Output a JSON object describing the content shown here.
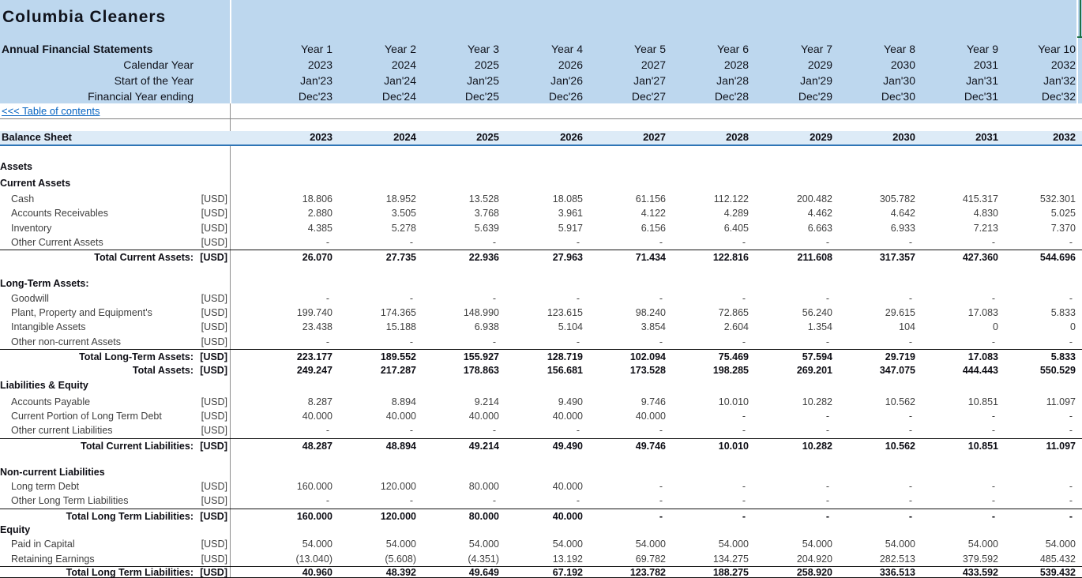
{
  "colors": {
    "header_band": "#BDD7EE",
    "subheader_band": "#DDEBF7",
    "accent_blue": "#2E75B6",
    "link_blue": "#0563C1",
    "selection_green": "#1E7145"
  },
  "header": {
    "title": "Columbia Cleaners",
    "statements_label": "Annual Financial Statements",
    "year_labels": [
      "Year 1",
      "Year 2",
      "Year 3",
      "Year 4",
      "Year 5",
      "Year 6",
      "Year 7",
      "Year 8",
      "Year 9",
      "Year 10"
    ],
    "rows": [
      {
        "label": "Calendar Year",
        "values": [
          "2023",
          "2024",
          "2025",
          "2026",
          "2027",
          "2028",
          "2029",
          "2030",
          "2031",
          "2032"
        ]
      },
      {
        "label": "Start of the Year",
        "values": [
          "Jan'23",
          "Jan'24",
          "Jan'25",
          "Jan'26",
          "Jan'27",
          "Jan'28",
          "Jan'29",
          "Jan'30",
          "Jan'31",
          "Jan'32"
        ]
      },
      {
        "label": "Financial Year ending",
        "values": [
          "Dec'23",
          "Dec'24",
          "Dec'25",
          "Dec'26",
          "Dec'27",
          "Dec'28",
          "Dec'29",
          "Dec'30",
          "Dec'31",
          "Dec'32"
        ]
      }
    ]
  },
  "toc_link": "<<< Table of contents",
  "balance_sheet": {
    "label": "Balance Sheet",
    "years": [
      "2023",
      "2024",
      "2025",
      "2026",
      "2027",
      "2028",
      "2029",
      "2030",
      "2031",
      "2032"
    ]
  },
  "table": {
    "unit": "[USD]",
    "rows": [
      {
        "type": "section",
        "label": "Assets"
      },
      {
        "type": "section",
        "label": "Current Assets"
      },
      {
        "type": "item",
        "label": "Cash",
        "values": [
          "18.806",
          "18.952",
          "13.528",
          "18.085",
          "61.156",
          "112.122",
          "200.482",
          "305.782",
          "415.317",
          "532.301"
        ]
      },
      {
        "type": "item",
        "label": "Accounts Receivables",
        "values": [
          "2.880",
          "3.505",
          "3.768",
          "3.961",
          "4.122",
          "4.289",
          "4.462",
          "4.642",
          "4.830",
          "5.025"
        ]
      },
      {
        "type": "item",
        "label": "Inventory",
        "values": [
          "4.385",
          "5.278",
          "5.639",
          "5.917",
          "6.156",
          "6.405",
          "6.663",
          "6.933",
          "7.213",
          "7.370"
        ]
      },
      {
        "type": "item",
        "label": "Other Current Assets",
        "values": [
          "-",
          "-",
          "-",
          "-",
          "-",
          "-",
          "-",
          "-",
          "-",
          "-"
        ]
      },
      {
        "type": "total",
        "label": "Total Current Assets:",
        "values": [
          "26.070",
          "27.735",
          "22.936",
          "27.963",
          "71.434",
          "122.816",
          "211.608",
          "317.357",
          "427.360",
          "544.696"
        ]
      },
      {
        "type": "blank"
      },
      {
        "type": "section",
        "label": "Long-Term Assets:"
      },
      {
        "type": "item",
        "label": "Goodwill",
        "values": [
          "-",
          "-",
          "-",
          "-",
          "-",
          "-",
          "-",
          "-",
          "-",
          "-"
        ]
      },
      {
        "type": "item",
        "label": "Plant, Property and Equipment's",
        "values": [
          "199.740",
          "174.365",
          "148.990",
          "123.615",
          "98.240",
          "72.865",
          "56.240",
          "29.615",
          "17.083",
          "5.833"
        ]
      },
      {
        "type": "item",
        "label": "Intangible Assets",
        "values": [
          "23.438",
          "15.188",
          "6.938",
          "5.104",
          "3.854",
          "2.604",
          "1.354",
          "104",
          "0",
          "0"
        ]
      },
      {
        "type": "item",
        "label": "Other non-current Assets",
        "values": [
          "-",
          "-",
          "-",
          "-",
          "-",
          "-",
          "-",
          "-",
          "-",
          "-"
        ]
      },
      {
        "type": "total",
        "label": "Total Long-Term Assets:",
        "values": [
          "223.177",
          "189.552",
          "155.927",
          "128.719",
          "102.094",
          "75.469",
          "57.594",
          "29.719",
          "17.083",
          "5.833"
        ]
      },
      {
        "type": "total",
        "subtype": "nb",
        "label": "Total Assets:",
        "values": [
          "249.247",
          "217.287",
          "178.863",
          "156.681",
          "173.528",
          "198.285",
          "269.201",
          "347.075",
          "444.443",
          "550.529"
        ]
      },
      {
        "type": "section",
        "label": "Liabilities & Equity"
      },
      {
        "type": "item",
        "label": "Accounts Payable",
        "values": [
          "8.287",
          "8.894",
          "9.214",
          "9.490",
          "9.746",
          "10.010",
          "10.282",
          "10.562",
          "10.851",
          "11.097"
        ]
      },
      {
        "type": "item",
        "label": "Current Portion of Long Term Debt",
        "values": [
          "40.000",
          "40.000",
          "40.000",
          "40.000",
          "40.000",
          "-",
          "-",
          "-",
          "-",
          "-"
        ]
      },
      {
        "type": "item",
        "label": "Other current Liabilities",
        "values": [
          "-",
          "-",
          "-",
          "-",
          "-",
          "-",
          "-",
          "-",
          "-",
          "-"
        ]
      },
      {
        "type": "total",
        "label": "Total Current Liabilities:",
        "values": [
          "48.287",
          "48.894",
          "49.214",
          "49.490",
          "49.746",
          "10.010",
          "10.282",
          "10.562",
          "10.851",
          "11.097"
        ]
      },
      {
        "type": "blank"
      },
      {
        "type": "section",
        "label": "Non-current Liabilities"
      },
      {
        "type": "item",
        "label": "Long term Debt",
        "values": [
          "160.000",
          "120.000",
          "80.000",
          "40.000",
          "-",
          "-",
          "-",
          "-",
          "-",
          "-"
        ]
      },
      {
        "type": "item",
        "label": "Other Long Term Liabilities",
        "values": [
          "-",
          "-",
          "-",
          "-",
          "-",
          "-",
          "-",
          "-",
          "-",
          "-"
        ]
      },
      {
        "type": "total",
        "label": "Total Long Term Liabilities:",
        "values": [
          "160.000",
          "120.000",
          "80.000",
          "40.000",
          "-",
          "-",
          "-",
          "-",
          "-",
          "-"
        ]
      },
      {
        "type": "section",
        "label": "Equity"
      },
      {
        "type": "item",
        "label": "Paid in Capital",
        "values": [
          "54.000",
          "54.000",
          "54.000",
          "54.000",
          "54.000",
          "54.000",
          "54.000",
          "54.000",
          "54.000",
          "54.000"
        ]
      },
      {
        "type": "item",
        "label": "Retaining Earnings",
        "values": [
          "(13.040)",
          "(5.608)",
          "(4.351)",
          "13.192",
          "69.782",
          "134.275",
          "204.920",
          "282.513",
          "379.592",
          "485.432"
        ]
      },
      {
        "type": "total",
        "subtype": "grand",
        "label": "Total Long Term Liabilities:",
        "values": [
          "40.960",
          "48.392",
          "49.649",
          "67.192",
          "123.782",
          "188.275",
          "258.920",
          "336.513",
          "433.592",
          "539.432"
        ]
      }
    ]
  }
}
